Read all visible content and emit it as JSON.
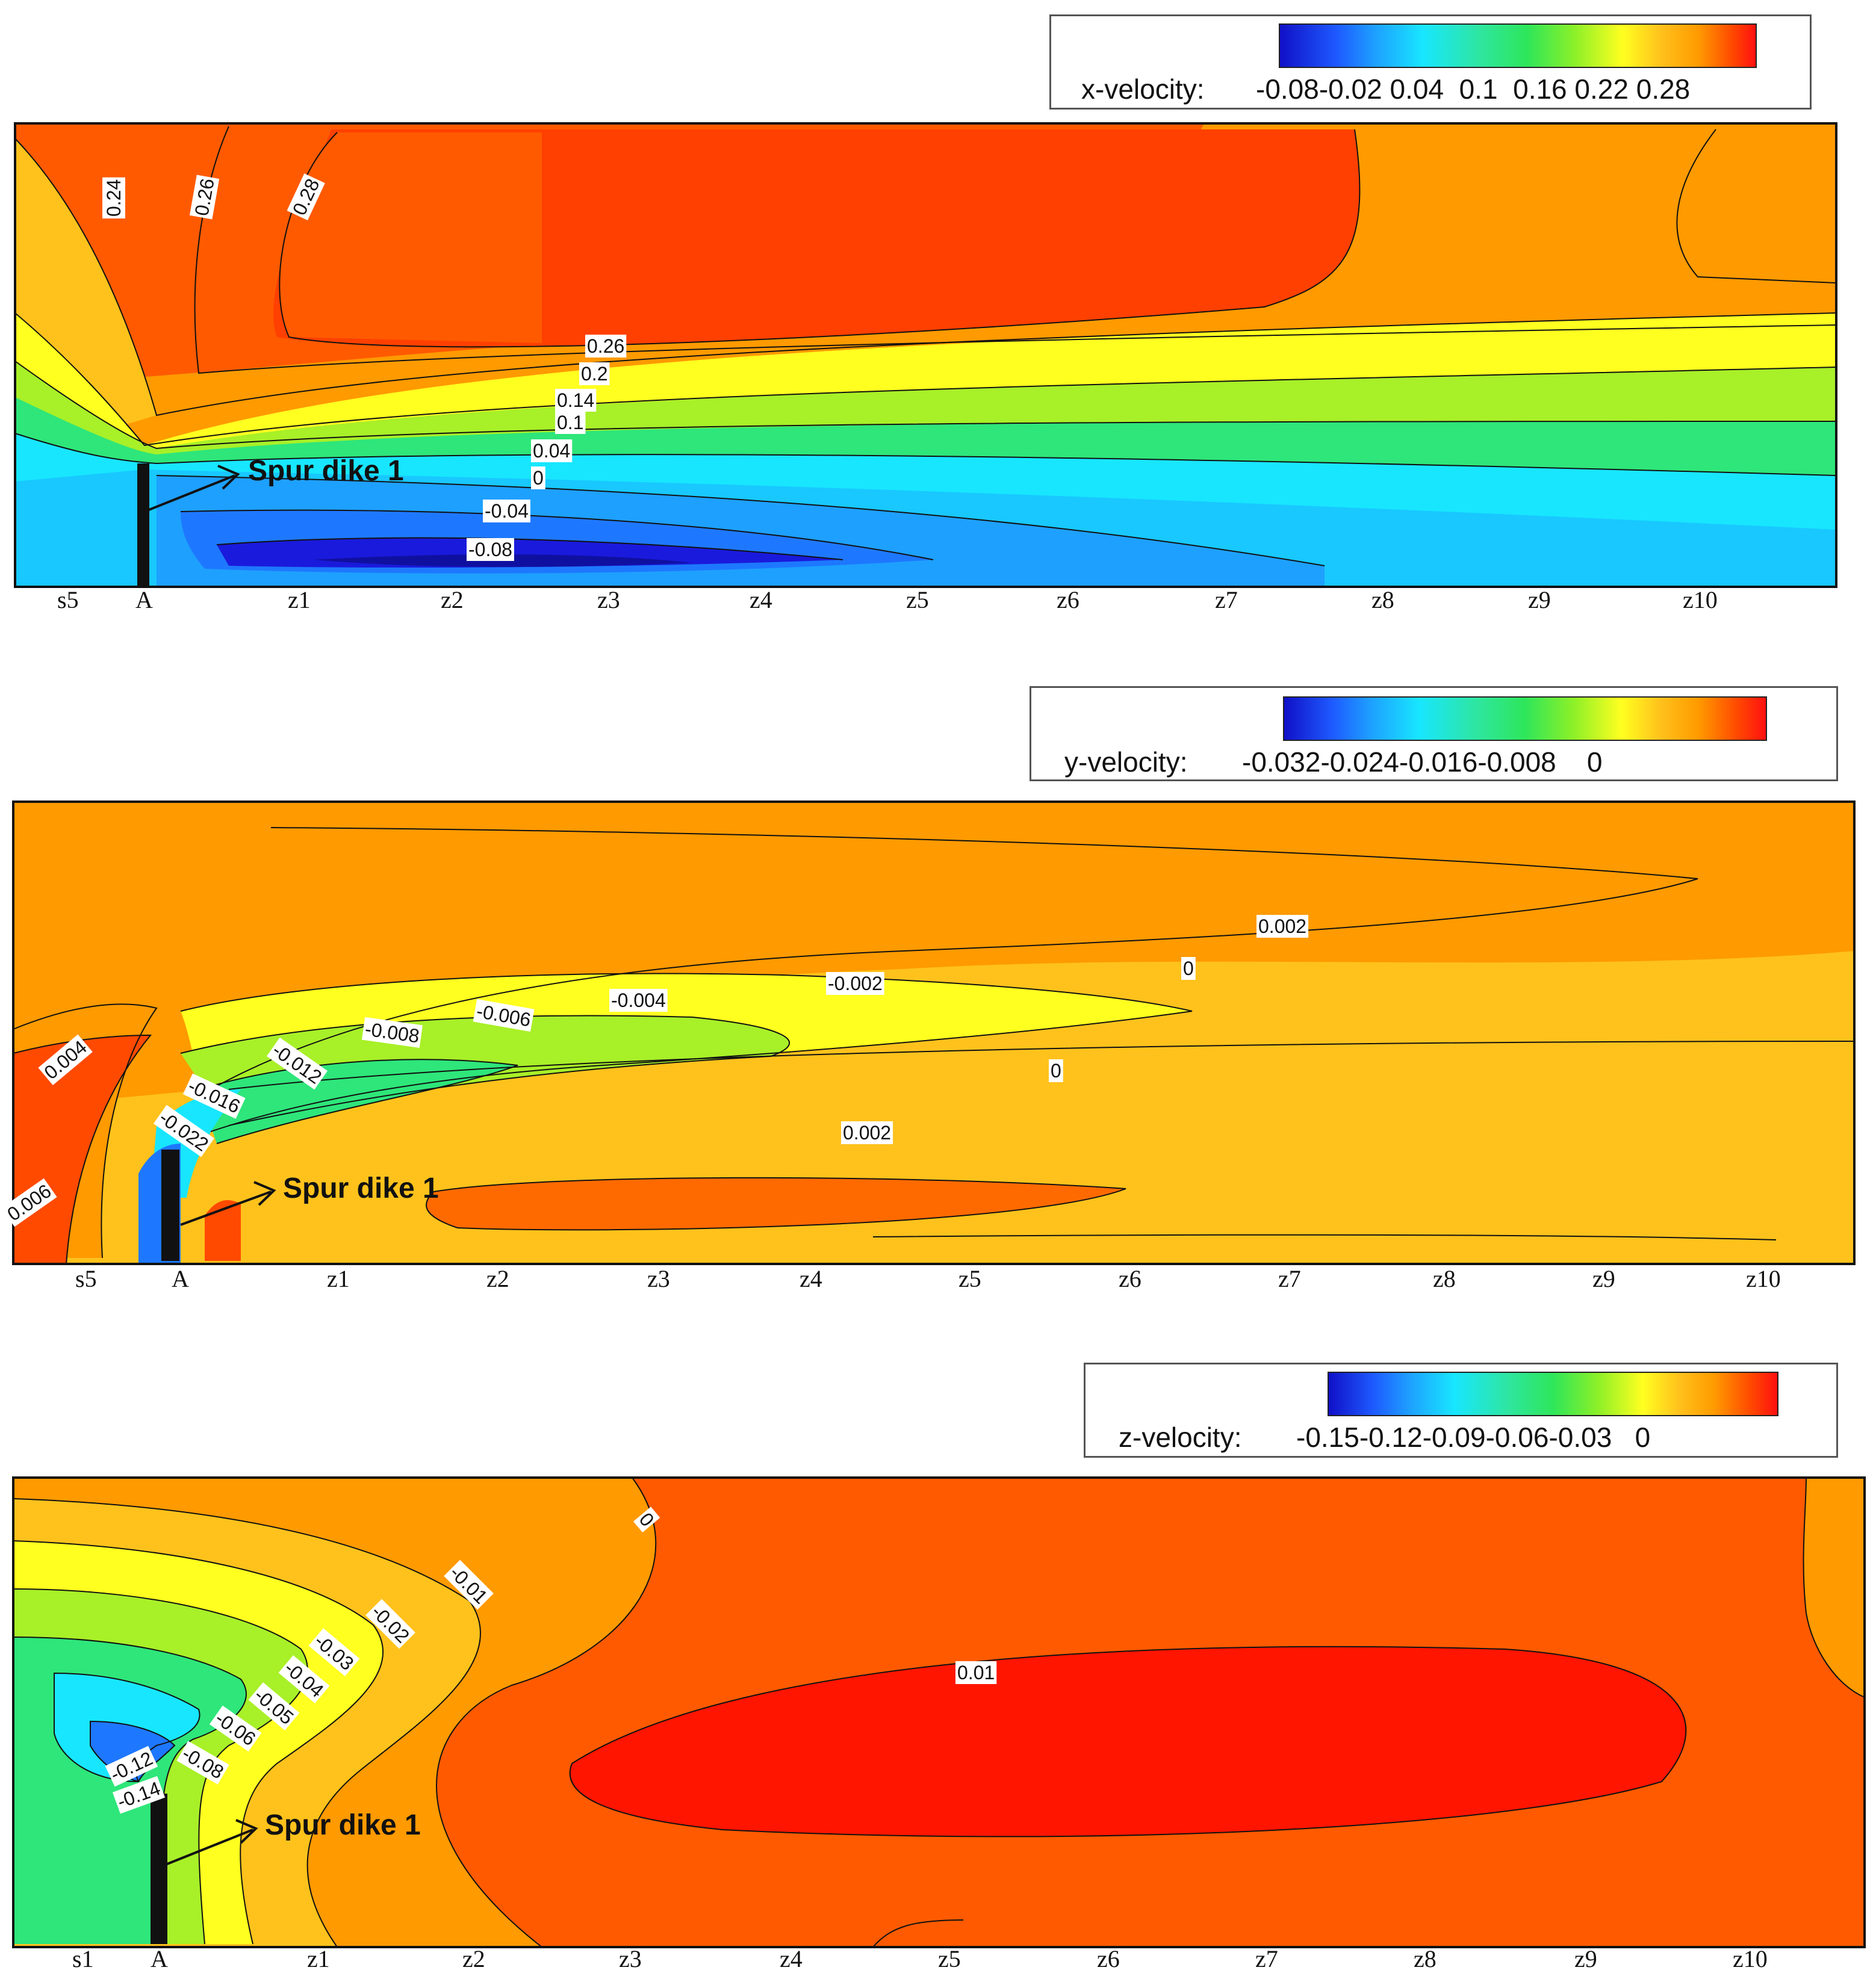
{
  "panels": [
    {
      "legend": {
        "title": "x-velocity:",
        "ticks": [
          "-0.08",
          "-0.02",
          "0.04",
          "0.1",
          "0.16",
          "0.22",
          "0.28"
        ]
      },
      "x_ticks": [
        "s5",
        "A",
        "z1",
        "z2",
        "z3",
        "z4",
        "z5",
        "z6",
        "z7",
        "z8",
        "z9",
        "z10"
      ],
      "contour_labels": [
        "0.24",
        "0.26",
        "0.28",
        "0.26",
        "0.2",
        "0.14",
        "0.1",
        "0.04",
        "0",
        "-0.04",
        "-0.08"
      ],
      "annotation": "Spur dike 1"
    },
    {
      "legend": {
        "title": "y-velocity:",
        "ticks": [
          "-0.032",
          "-0.024",
          "-0.016",
          "-0.008",
          "0"
        ]
      },
      "x_ticks": [
        "s5",
        "A",
        "z1",
        "z2",
        "z3",
        "z4",
        "z5",
        "z6",
        "z7",
        "z8",
        "z9",
        "z10"
      ],
      "contour_labels": [
        "0.002",
        "0",
        "-0.002",
        "-0.004",
        "-0.006",
        "-0.008",
        "-0.012",
        "-0.016",
        "-0.022",
        "0.004",
        "0.006",
        "0",
        "0.002"
      ],
      "annotation": "Spur dike 1"
    },
    {
      "legend": {
        "title": "z-velocity:",
        "ticks": [
          "-0.15",
          "-0.12",
          "-0.09",
          "-0.06",
          "-0.03",
          "0"
        ]
      },
      "x_ticks": [
        "s1",
        "A",
        "z1",
        "z2",
        "z3",
        "z4",
        "z5",
        "z6",
        "z7",
        "z8",
        "z9",
        "z10"
      ],
      "contour_labels": [
        "0",
        "-0.01",
        "-0.02",
        "-0.03",
        "-0.04",
        "-0.05",
        "-0.06",
        "-0.08",
        "-0.12",
        "-0.14",
        "0.01"
      ],
      "annotation": "Spur dike 1"
    }
  ],
  "colors": {
    "deep_blue": "#1a1adc",
    "blue": "#1e78ff",
    "cyan": "#18e6ff",
    "green": "#2ee67a",
    "yellow_green": "#a8f028",
    "yellow": "#ffff20",
    "light_orange": "#ffc21c",
    "orange": "#ff9a00",
    "red_orange": "#ff5a00",
    "red": "#ff1500"
  },
  "chart_data": [
    {
      "type": "heatmap",
      "variable": "x-velocity",
      "colorbar_ticks": [
        -0.08,
        -0.02,
        0.04,
        0.1,
        0.16,
        0.22,
        0.28
      ],
      "x_stations": [
        "s5",
        "A",
        "z1",
        "z2",
        "z3",
        "z4",
        "z5",
        "z6",
        "z7",
        "z8",
        "z9",
        "z10"
      ],
      "contour_levels": [
        -0.08,
        -0.04,
        0,
        0.04,
        0.1,
        0.14,
        0.2,
        0.24,
        0.26,
        0.28
      ],
      "annotation": "Spur dike 1"
    },
    {
      "type": "heatmap",
      "variable": "y-velocity",
      "colorbar_ticks": [
        -0.032,
        -0.024,
        -0.016,
        -0.008,
        0
      ],
      "x_stations": [
        "s5",
        "A",
        "z1",
        "z2",
        "z3",
        "z4",
        "z5",
        "z6",
        "z7",
        "z8",
        "z9",
        "z10"
      ],
      "contour_levels": [
        -0.022,
        -0.016,
        -0.012,
        -0.008,
        -0.006,
        -0.004,
        -0.002,
        0,
        0.002,
        0.004,
        0.006
      ],
      "annotation": "Spur dike 1"
    },
    {
      "type": "heatmap",
      "variable": "z-velocity",
      "colorbar_ticks": [
        -0.15,
        -0.12,
        -0.09,
        -0.06,
        -0.03,
        0
      ],
      "x_stations": [
        "s1",
        "A",
        "z1",
        "z2",
        "z3",
        "z4",
        "z5",
        "z6",
        "z7",
        "z8",
        "z9",
        "z10"
      ],
      "contour_levels": [
        -0.14,
        -0.12,
        -0.08,
        -0.06,
        -0.05,
        -0.04,
        -0.03,
        -0.02,
        -0.01,
        0,
        0.01
      ],
      "annotation": "Spur dike 1"
    }
  ]
}
